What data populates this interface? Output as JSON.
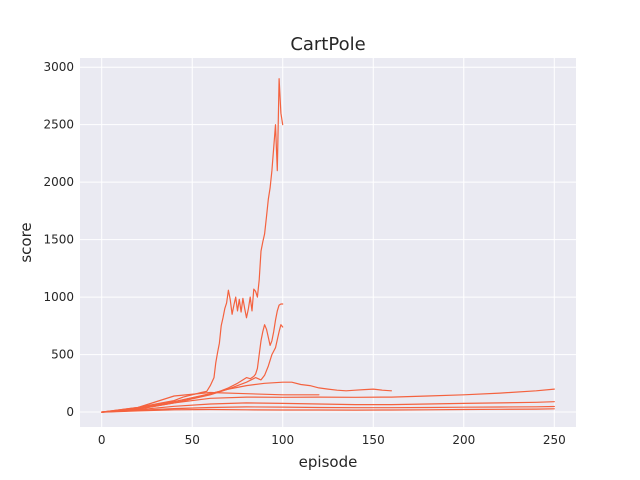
{
  "chart_data": {
    "type": "line",
    "title": "CartPole",
    "xlabel": "episode",
    "ylabel": "score",
    "xlim": [
      -12,
      262
    ],
    "ylim": [
      -130,
      3080
    ],
    "xticks": [
      0,
      50,
      100,
      150,
      200,
      250
    ],
    "yticks": [
      0,
      500,
      1000,
      1500,
      2000,
      2500,
      3000
    ],
    "grid": true,
    "background": "#eaeaf2",
    "line_color": "#f4623f",
    "series": [
      {
        "x": [
          0,
          10,
          20,
          30,
          40,
          45,
          50,
          55,
          58,
          60,
          62,
          63,
          64,
          65,
          66,
          67,
          68,
          69,
          70,
          71,
          72,
          73,
          74,
          75,
          76,
          77,
          78,
          79,
          80,
          81,
          82,
          83,
          84,
          85,
          86,
          87,
          88,
          89,
          90,
          91,
          92,
          93,
          94,
          95,
          96,
          97,
          98,
          99,
          100
        ],
        "y": [
          0,
          20,
          40,
          70,
          100,
          130,
          150,
          170,
          180,
          230,
          300,
          430,
          520,
          600,
          750,
          820,
          900,
          950,
          1060,
          980,
          850,
          930,
          1000,
          880,
          980,
          870,
          990,
          900,
          820,
          900,
          1000,
          880,
          1070,
          1050,
          1000,
          1150,
          1400,
          1480,
          1550,
          1700,
          1850,
          1950,
          2100,
          2300,
          2500,
          2100,
          2900,
          2600,
          2500
        ]
      },
      {
        "x": [
          0,
          20,
          40,
          55,
          60,
          65,
          70,
          75,
          78,
          80,
          82,
          84,
          85,
          86,
          87,
          88,
          89,
          90,
          91,
          92,
          93,
          94,
          95,
          96,
          97,
          98,
          99,
          100
        ],
        "y": [
          0,
          30,
          90,
          140,
          160,
          180,
          210,
          250,
          280,
          300,
          290,
          310,
          330,
          380,
          500,
          620,
          700,
          760,
          720,
          650,
          580,
          620,
          700,
          800,
          880,
          930,
          940,
          940
        ]
      },
      {
        "x": [
          0,
          20,
          40,
          60,
          70,
          80,
          85,
          88,
          90,
          92,
          94,
          96,
          98,
          99,
          100
        ],
        "y": [
          0,
          25,
          80,
          150,
          200,
          260,
          300,
          280,
          320,
          400,
          500,
          560,
          700,
          760,
          740
        ]
      },
      {
        "x": [
          0,
          20,
          40,
          60,
          70,
          80,
          90,
          100,
          105,
          110,
          115,
          120,
          125,
          130,
          135,
          140,
          145,
          150,
          155,
          160
        ],
        "y": [
          0,
          30,
          90,
          160,
          200,
          230,
          250,
          260,
          260,
          240,
          230,
          210,
          200,
          190,
          185,
          190,
          195,
          200,
          190,
          185
        ]
      },
      {
        "x": [
          0,
          20,
          40,
          60,
          80,
          100,
          120,
          140,
          160,
          180,
          200,
          220,
          240,
          250
        ],
        "y": [
          0,
          25,
          80,
          120,
          130,
          128,
          130,
          128,
          130,
          140,
          150,
          165,
          185,
          200
        ]
      },
      {
        "x": [
          0,
          20,
          40,
          60,
          80,
          100,
          120,
          140,
          160,
          180,
          200,
          220,
          240,
          250
        ],
        "y": [
          0,
          20,
          50,
          70,
          80,
          75,
          70,
          65,
          65,
          70,
          75,
          80,
          85,
          90
        ]
      },
      {
        "x": [
          0,
          20,
          40,
          60,
          80,
          100,
          120,
          140,
          160,
          180,
          200,
          220,
          240,
          250
        ],
        "y": [
          0,
          15,
          30,
          40,
          45,
          43,
          40,
          38,
          38,
          40,
          42,
          44,
          46,
          48
        ]
      },
      {
        "x": [
          0,
          20,
          40,
          60,
          80,
          100,
          120,
          140,
          160,
          180,
          200,
          220,
          240,
          250
        ],
        "y": [
          0,
          10,
          20,
          22,
          20,
          18,
          18,
          17,
          18,
          20,
          22,
          24,
          26,
          28
        ]
      },
      {
        "x": [
          0,
          20,
          40,
          60,
          80,
          100,
          120
        ],
        "y": [
          0,
          40,
          140,
          170,
          160,
          150,
          150
        ]
      }
    ]
  }
}
